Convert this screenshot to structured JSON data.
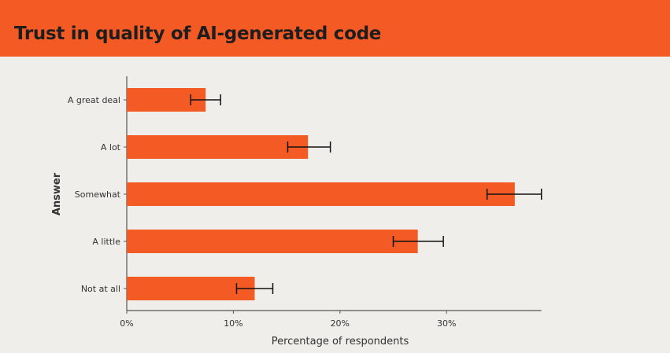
{
  "title": "Trust in quality of AI-generated code",
  "chart_data": {
    "type": "bar",
    "orientation": "horizontal",
    "title": "Trust in quality of AI-generated code",
    "xlabel": "Percentage of respondents",
    "ylabel": "Answer",
    "categories": [
      "A great deal",
      "A lot",
      "Somewhat",
      "A little",
      "Not at all"
    ],
    "values": [
      7.4,
      17.0,
      36.4,
      27.3,
      12.0
    ],
    "error_low": [
      6.0,
      15.1,
      33.8,
      25.0,
      10.3
    ],
    "error_high": [
      8.8,
      19.1,
      38.9,
      29.7,
      13.7
    ],
    "xlim": [
      0,
      38.9
    ],
    "xticks": [
      0,
      10,
      20,
      30
    ],
    "xtick_labels": [
      "0%",
      "10%",
      "20%",
      "30%"
    ],
    "grid": false,
    "bar_color": "#f45a24",
    "error_bar_color": "#111111"
  }
}
